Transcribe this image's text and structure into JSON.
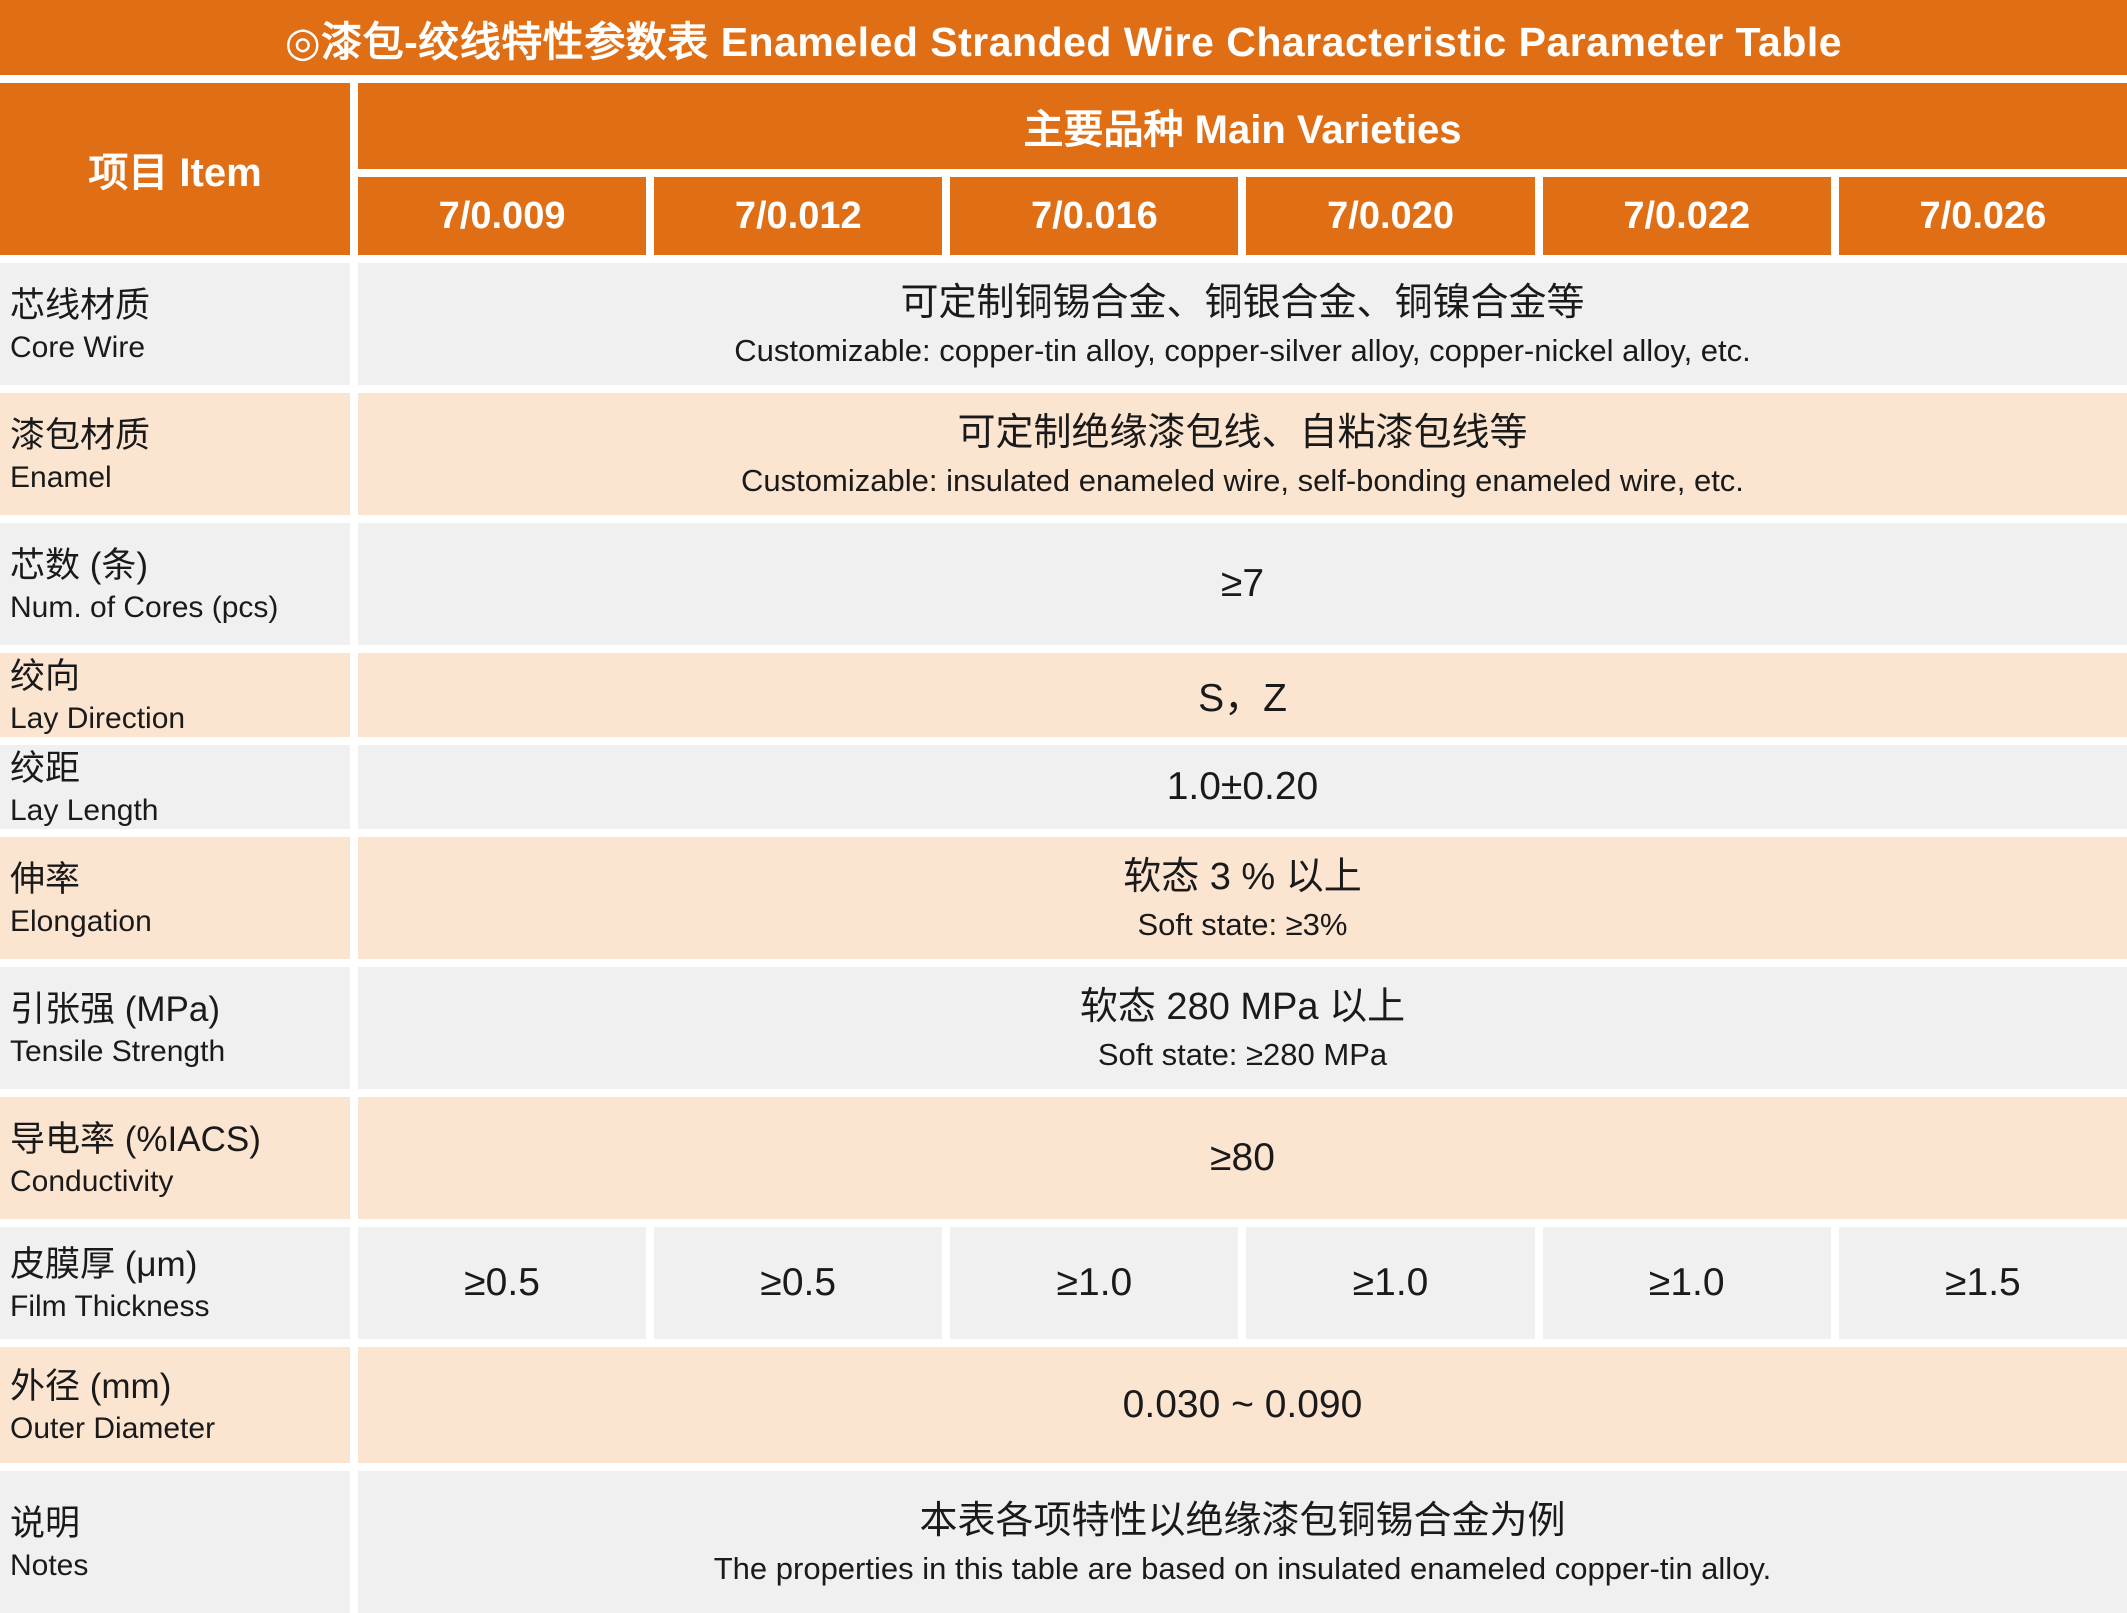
{
  "title": "◎漆包-绞线特性参数表 Enameled Stranded Wire Characteristic Parameter Table",
  "header": {
    "item_label": "项目 Item",
    "varieties_label": "主要品种 Main Varieties",
    "varieties": [
      "7/0.009",
      "7/0.012",
      "7/0.016",
      "7/0.020",
      "7/0.022",
      "7/0.026"
    ]
  },
  "rows": [
    {
      "bg": "gray",
      "inline": false,
      "type": "pair",
      "label_zh": "芯线材质",
      "label_en": "Core Wire",
      "value_zh": "可定制铜锡合金、铜银合金、铜镍合金等",
      "value_en": "Customizable: copper-tin alloy, copper-silver alloy, copper-nickel alloy, etc."
    },
    {
      "bg": "peach",
      "inline": false,
      "type": "pair",
      "label_zh": "漆包材质",
      "label_en": "Enamel",
      "value_zh": "可定制绝缘漆包线、自粘漆包线等",
      "value_en": "Customizable: insulated enameled wire, self-bonding enameled wire, etc."
    },
    {
      "bg": "gray",
      "inline": false,
      "type": "single",
      "label_zh": "芯数 (条)",
      "label_en": "Num. of Cores (pcs)",
      "value": "≥7"
    },
    {
      "bg": "peach",
      "inline": true,
      "type": "single",
      "label_zh": "绞向",
      "label_en": "Lay Direction",
      "value": "S，Z"
    },
    {
      "bg": "gray",
      "inline": true,
      "type": "single",
      "label_zh": "绞距",
      "label_en": "Lay Length",
      "value": "1.0±0.20"
    },
    {
      "bg": "peach",
      "inline": false,
      "type": "pair",
      "label_zh": "伸率",
      "label_en": "Elongation",
      "value_zh": "软态 3 % 以上",
      "value_en": "Soft state: ≥3%"
    },
    {
      "bg": "gray",
      "inline": false,
      "type": "pair",
      "label_zh": "引张强 (MPa)",
      "label_en": "Tensile Strength",
      "value_zh": "软态 280 MPa 以上",
      "value_en": "Soft state: ≥280 MPa"
    },
    {
      "bg": "peach",
      "inline": false,
      "type": "single",
      "label_zh": "导电率 (%IACS)",
      "label_en": "Conductivity",
      "value": "≥80"
    },
    {
      "bg": "gray",
      "inline": false,
      "type": "cells",
      "label_zh": "皮膜厚 (μm)",
      "label_en": "Film Thickness",
      "values": [
        "≥0.5",
        "≥0.5",
        "≥1.0",
        "≥1.0",
        "≥1.0",
        "≥1.5"
      ]
    },
    {
      "bg": "peach",
      "inline": false,
      "type": "single",
      "label_zh": "外径 (mm)",
      "label_en": "Outer Diameter",
      "value": "0.030 ~ 0.090"
    },
    {
      "bg": "gray",
      "inline": true,
      "type": "pair",
      "label_zh": "说明",
      "label_en": "Notes",
      "value_zh": "本表各项特性以绝缘漆包铜锡合金为例",
      "value_en": "The properties in this table are based on insulated enameled copper-tin alloy."
    }
  ],
  "colors": {
    "accent_orange": "#E06E15",
    "row_gray": "#F0F0F0",
    "row_peach": "#FBE5D1",
    "text": "#1A1A1A",
    "header_text": "#FFFFFF"
  }
}
